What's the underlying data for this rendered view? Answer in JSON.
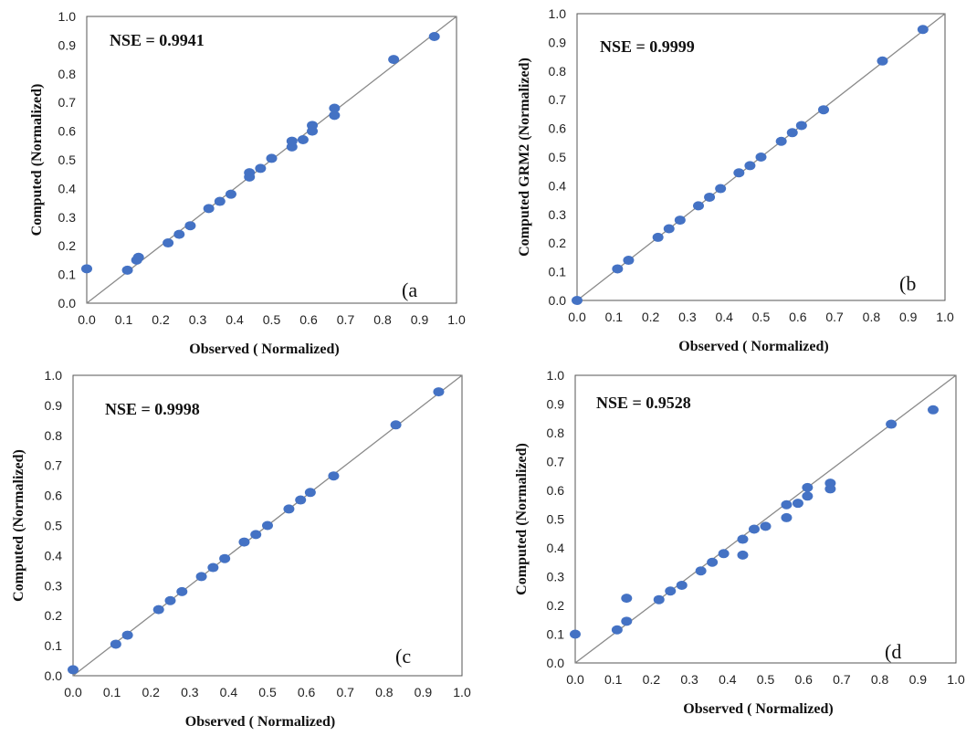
{
  "chart_data": [
    {
      "type": "scatter",
      "panel_label": "(a",
      "nse": "NSE = 0.9941",
      "xlabel": "Observed ( Normalized)",
      "ylabel": "Computed  (Normalized)",
      "xlim": [
        0,
        1
      ],
      "ylim": [
        0,
        1
      ],
      "xticks": [
        "0.0",
        "0.1",
        "0.2",
        "0.3",
        "0.4",
        "0.5",
        "0.6",
        "0.7",
        "0.8",
        "0.9",
        "1.0"
      ],
      "yticks": [
        "0.0",
        "0.1",
        "0.2",
        "0.3",
        "0.4",
        "0.5",
        "0.6",
        "0.7",
        "0.8",
        "0.9",
        "1.0"
      ],
      "reference_line": "1:1",
      "points": [
        [
          0.0,
          0.12
        ],
        [
          0.11,
          0.115
        ],
        [
          0.135,
          0.15
        ],
        [
          0.14,
          0.16
        ],
        [
          0.22,
          0.21
        ],
        [
          0.25,
          0.24
        ],
        [
          0.28,
          0.27
        ],
        [
          0.33,
          0.33
        ],
        [
          0.36,
          0.355
        ],
        [
          0.39,
          0.38
        ],
        [
          0.44,
          0.44
        ],
        [
          0.44,
          0.455
        ],
        [
          0.47,
          0.47
        ],
        [
          0.5,
          0.505
        ],
        [
          0.555,
          0.545
        ],
        [
          0.555,
          0.565
        ],
        [
          0.585,
          0.57
        ],
        [
          0.61,
          0.6
        ],
        [
          0.61,
          0.62
        ],
        [
          0.67,
          0.655
        ],
        [
          0.67,
          0.68
        ],
        [
          0.83,
          0.85
        ],
        [
          0.94,
          0.93
        ]
      ]
    },
    {
      "type": "scatter",
      "panel_label": "(b",
      "nse": "NSE = 0.9999",
      "xlabel": "Observed ( Normalized)",
      "ylabel": "Computed GRM2  (Normalized)",
      "xlim": [
        0,
        1
      ],
      "ylim": [
        0,
        1
      ],
      "xticks": [
        "0.0",
        "0.1",
        "0.2",
        "0.3",
        "0.4",
        "0.5",
        "0.6",
        "0.7",
        "0.8",
        "0.9",
        "1.0"
      ],
      "yticks": [
        "0.0",
        "0.1",
        "0.2",
        "0.3",
        "0.4",
        "0.5",
        "0.6",
        "0.7",
        "0.8",
        "0.9",
        "1.0"
      ],
      "reference_line": "1:1",
      "points": [
        [
          0.0,
          0.0
        ],
        [
          0.11,
          0.11
        ],
        [
          0.14,
          0.14
        ],
        [
          0.22,
          0.22
        ],
        [
          0.25,
          0.25
        ],
        [
          0.28,
          0.28
        ],
        [
          0.33,
          0.33
        ],
        [
          0.36,
          0.36
        ],
        [
          0.39,
          0.39
        ],
        [
          0.44,
          0.445
        ],
        [
          0.47,
          0.47
        ],
        [
          0.5,
          0.5
        ],
        [
          0.555,
          0.555
        ],
        [
          0.585,
          0.585
        ],
        [
          0.61,
          0.61
        ],
        [
          0.67,
          0.665
        ],
        [
          0.83,
          0.835
        ],
        [
          0.94,
          0.945
        ]
      ]
    },
    {
      "type": "scatter",
      "panel_label": "(c",
      "nse": "NSE = 0.9998",
      "xlabel": "Observed ( Normalized)",
      "ylabel": "Computed  (Normalized)",
      "xlim": [
        0,
        1
      ],
      "ylim": [
        0,
        1
      ],
      "xticks": [
        "0.0",
        "0.1",
        "0.2",
        "0.3",
        "0.4",
        "0.5",
        "0.6",
        "0.7",
        "0.8",
        "0.9",
        "1.0"
      ],
      "yticks": [
        "0.0",
        "0.1",
        "0.2",
        "0.3",
        "0.4",
        "0.5",
        "0.6",
        "0.7",
        "0.8",
        "0.9",
        "1.0"
      ],
      "reference_line": "1:1",
      "points": [
        [
          0.0,
          0.02
        ],
        [
          0.11,
          0.105
        ],
        [
          0.14,
          0.135
        ],
        [
          0.22,
          0.22
        ],
        [
          0.25,
          0.25
        ],
        [
          0.28,
          0.28
        ],
        [
          0.33,
          0.33
        ],
        [
          0.36,
          0.36
        ],
        [
          0.39,
          0.39
        ],
        [
          0.44,
          0.445
        ],
        [
          0.47,
          0.47
        ],
        [
          0.5,
          0.5
        ],
        [
          0.555,
          0.555
        ],
        [
          0.585,
          0.585
        ],
        [
          0.61,
          0.61
        ],
        [
          0.67,
          0.665
        ],
        [
          0.83,
          0.835
        ],
        [
          0.94,
          0.945
        ]
      ]
    },
    {
      "type": "scatter",
      "panel_label": "(d",
      "nse": "NSE = 0.9528",
      "xlabel": "Observed ( Normalized)",
      "ylabel": "Computed  (Normalized)",
      "xlim": [
        0,
        1
      ],
      "ylim": [
        0,
        1
      ],
      "xticks": [
        "0.0",
        "0.1",
        "0.2",
        "0.3",
        "0.4",
        "0.5",
        "0.6",
        "0.7",
        "0.8",
        "0.9",
        "1.0"
      ],
      "yticks": [
        "0.0",
        "0.1",
        "0.2",
        "0.3",
        "0.4",
        "0.5",
        "0.6",
        "0.7",
        "0.8",
        "0.9",
        "1.0"
      ],
      "reference_line": "1:1",
      "points": [
        [
          0.0,
          0.1
        ],
        [
          0.11,
          0.115
        ],
        [
          0.135,
          0.145
        ],
        [
          0.135,
          0.225
        ],
        [
          0.22,
          0.22
        ],
        [
          0.25,
          0.25
        ],
        [
          0.28,
          0.27
        ],
        [
          0.33,
          0.32
        ],
        [
          0.36,
          0.35
        ],
        [
          0.39,
          0.38
        ],
        [
          0.44,
          0.375
        ],
        [
          0.44,
          0.43
        ],
        [
          0.47,
          0.465
        ],
        [
          0.5,
          0.475
        ],
        [
          0.555,
          0.505
        ],
        [
          0.555,
          0.55
        ],
        [
          0.585,
          0.555
        ],
        [
          0.61,
          0.58
        ],
        [
          0.61,
          0.61
        ],
        [
          0.67,
          0.605
        ],
        [
          0.67,
          0.625
        ],
        [
          0.83,
          0.83
        ],
        [
          0.94,
          0.88
        ]
      ]
    }
  ]
}
